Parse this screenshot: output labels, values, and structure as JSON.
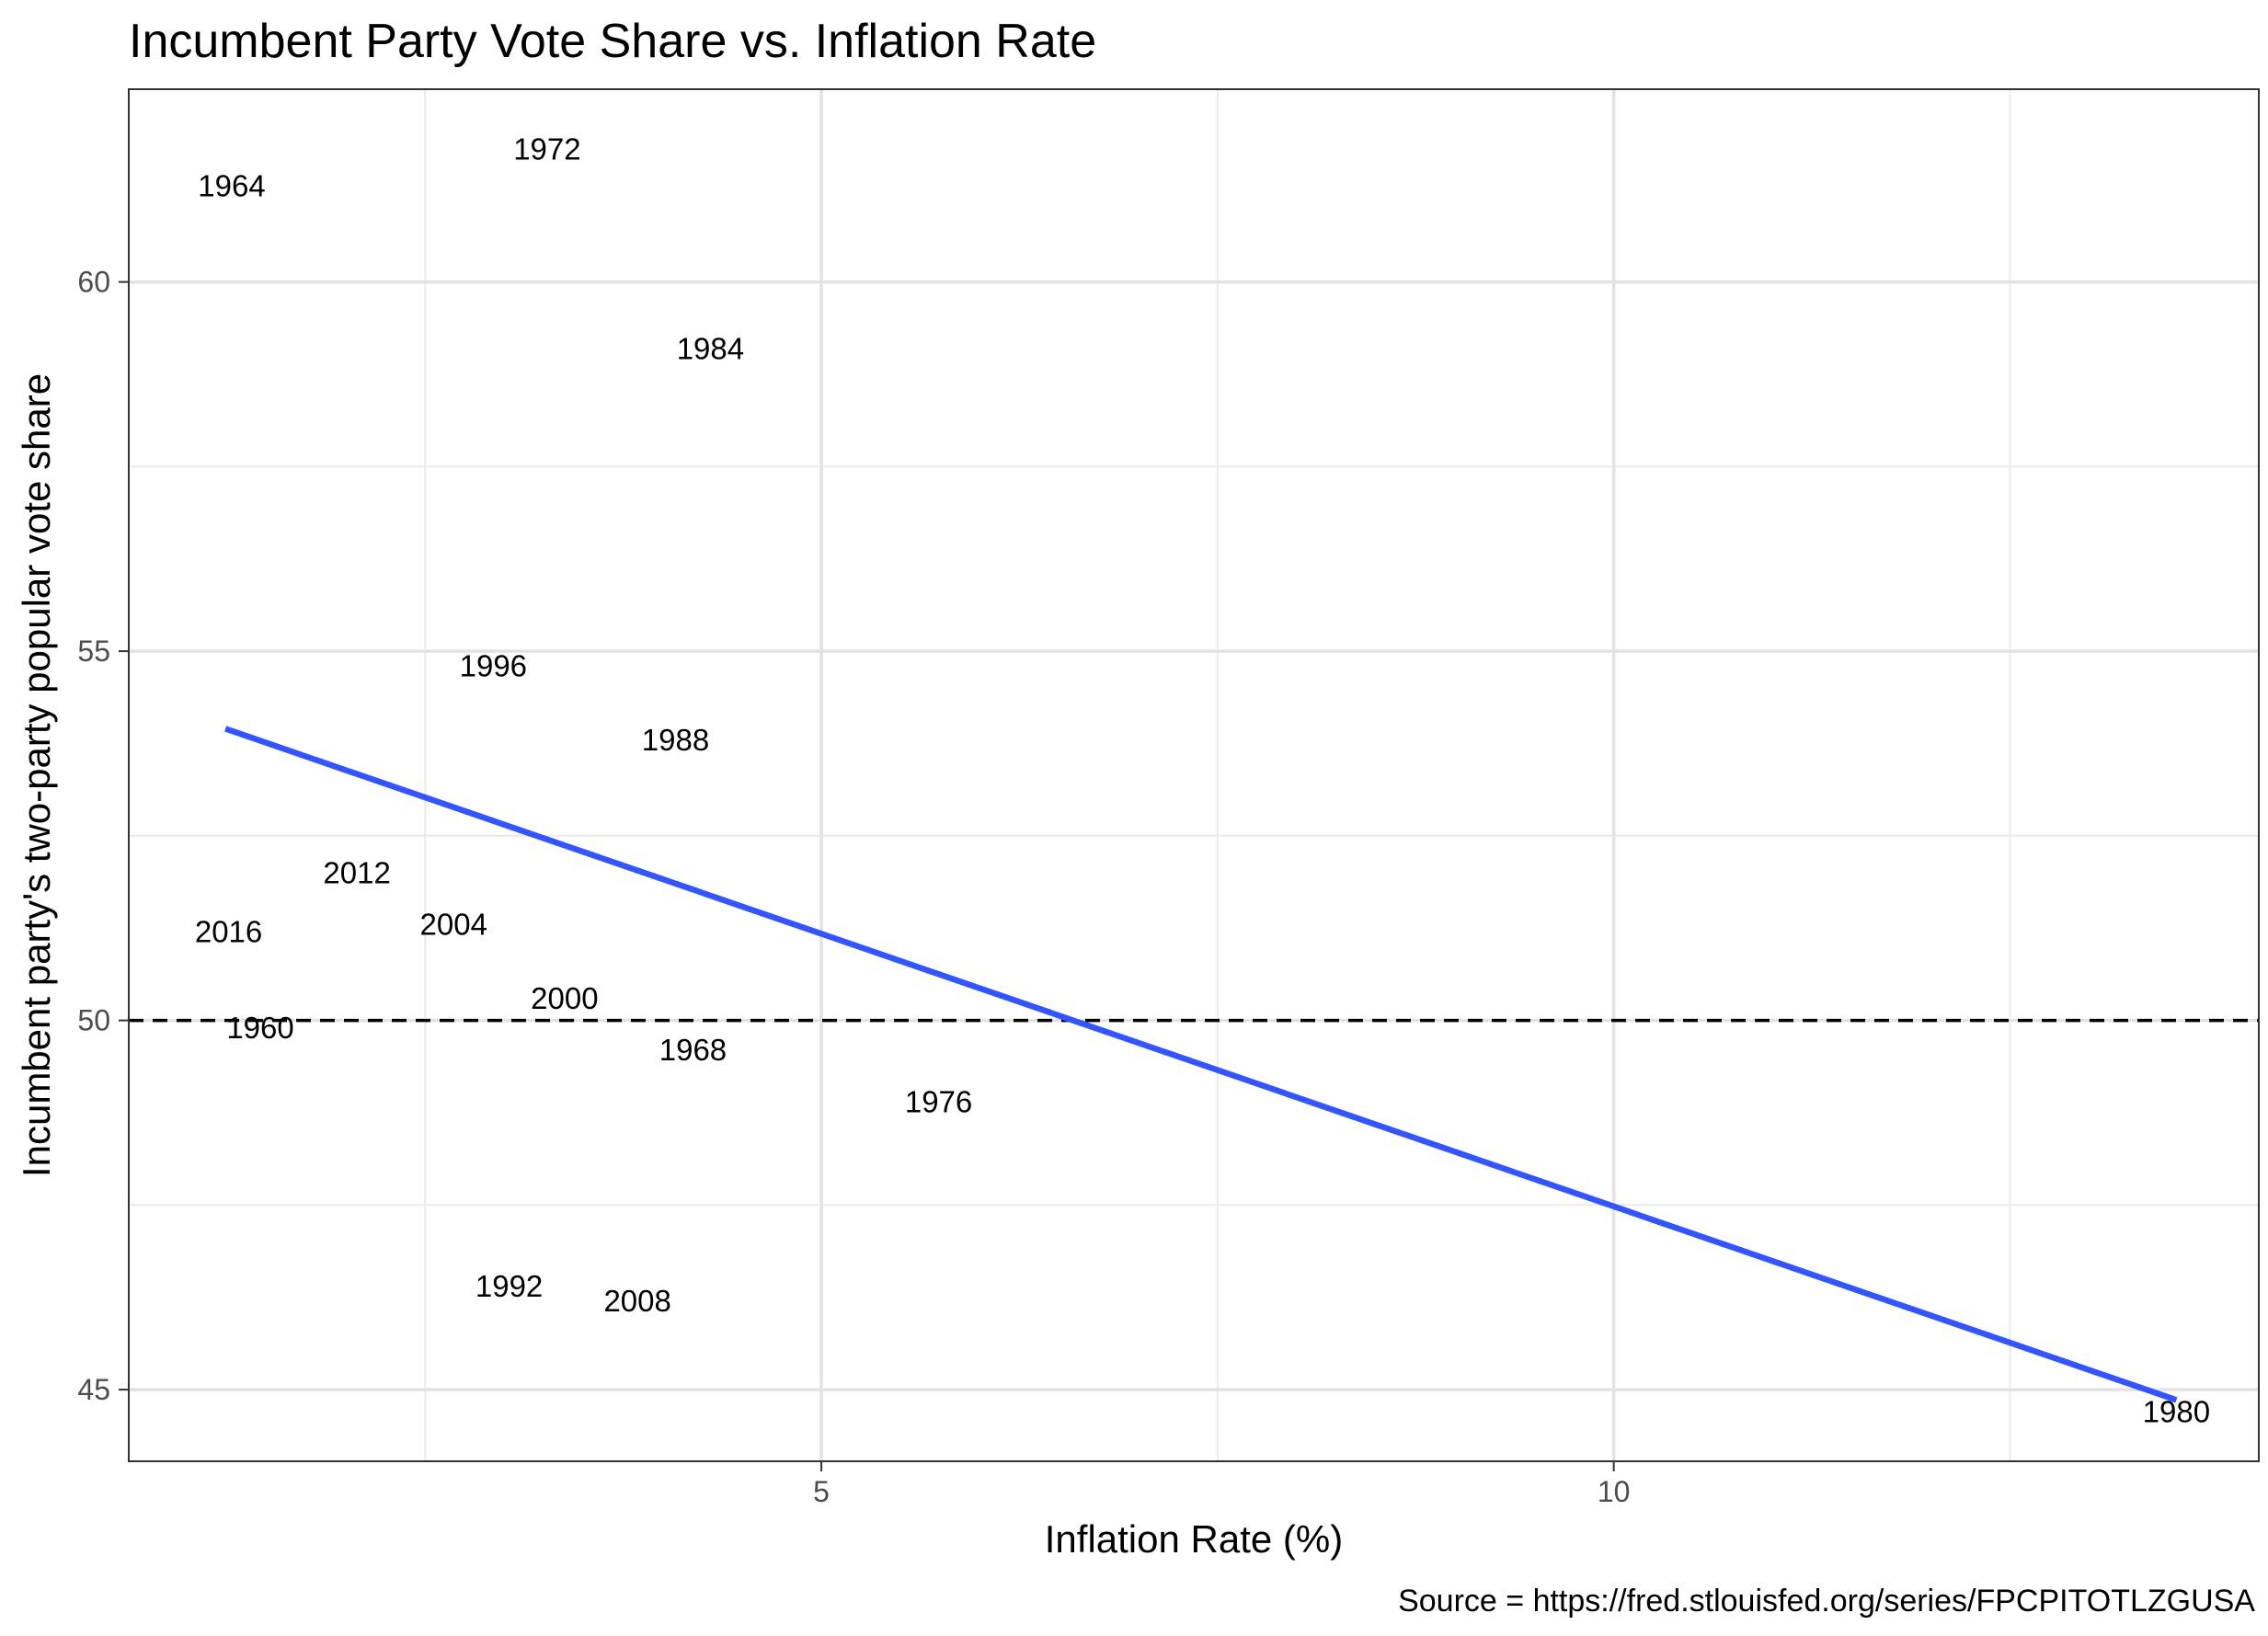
{
  "chart_data": {
    "type": "scatter",
    "title": "Incumbent Party Vote Share vs. Inflation Rate",
    "xlabel": "Inflation Rate (%)",
    "ylabel": "Incumbent party's two-party popular vote share",
    "caption": "Source = https://fred.stlouisfed.org/series/FPCPITOTLZGUSA",
    "xlim": [
      0.63,
      14.07
    ],
    "ylim": [
      44.03,
      62.61
    ],
    "x_ticks": [
      5,
      10
    ],
    "y_ticks": [
      45,
      50,
      55,
      60
    ],
    "x_minor": [
      2.5,
      7.5,
      12.5
    ],
    "y_minor": [
      47.5,
      52.5,
      57.5
    ],
    "grid": true,
    "reference_line": {
      "y": 50,
      "style": "dashed"
    },
    "trend_line": {
      "x": [
        1.24,
        13.55
      ],
      "y": [
        53.95,
        44.86
      ],
      "color": "#3355FF"
    },
    "points": [
      {
        "label": "1960",
        "x": 1.46,
        "y": 49.9
      },
      {
        "label": "1964",
        "x": 1.28,
        "y": 61.3
      },
      {
        "label": "1968",
        "x": 4.19,
        "y": 49.6
      },
      {
        "label": "1972",
        "x": 3.27,
        "y": 61.8
      },
      {
        "label": "1976",
        "x": 5.74,
        "y": 48.9
      },
      {
        "label": "1980",
        "x": 13.55,
        "y": 44.7
      },
      {
        "label": "1984",
        "x": 4.3,
        "y": 59.1
      },
      {
        "label": "1988",
        "x": 4.08,
        "y": 53.8
      },
      {
        "label": "1992",
        "x": 3.03,
        "y": 46.4
      },
      {
        "label": "1996",
        "x": 2.93,
        "y": 54.8
      },
      {
        "label": "2000",
        "x": 3.38,
        "y": 50.3
      },
      {
        "label": "2004",
        "x": 2.68,
        "y": 51.3
      },
      {
        "label": "2008",
        "x": 3.84,
        "y": 46.2
      },
      {
        "label": "2012",
        "x": 2.07,
        "y": 52.0
      },
      {
        "label": "2016",
        "x": 1.26,
        "y": 51.2
      }
    ]
  }
}
